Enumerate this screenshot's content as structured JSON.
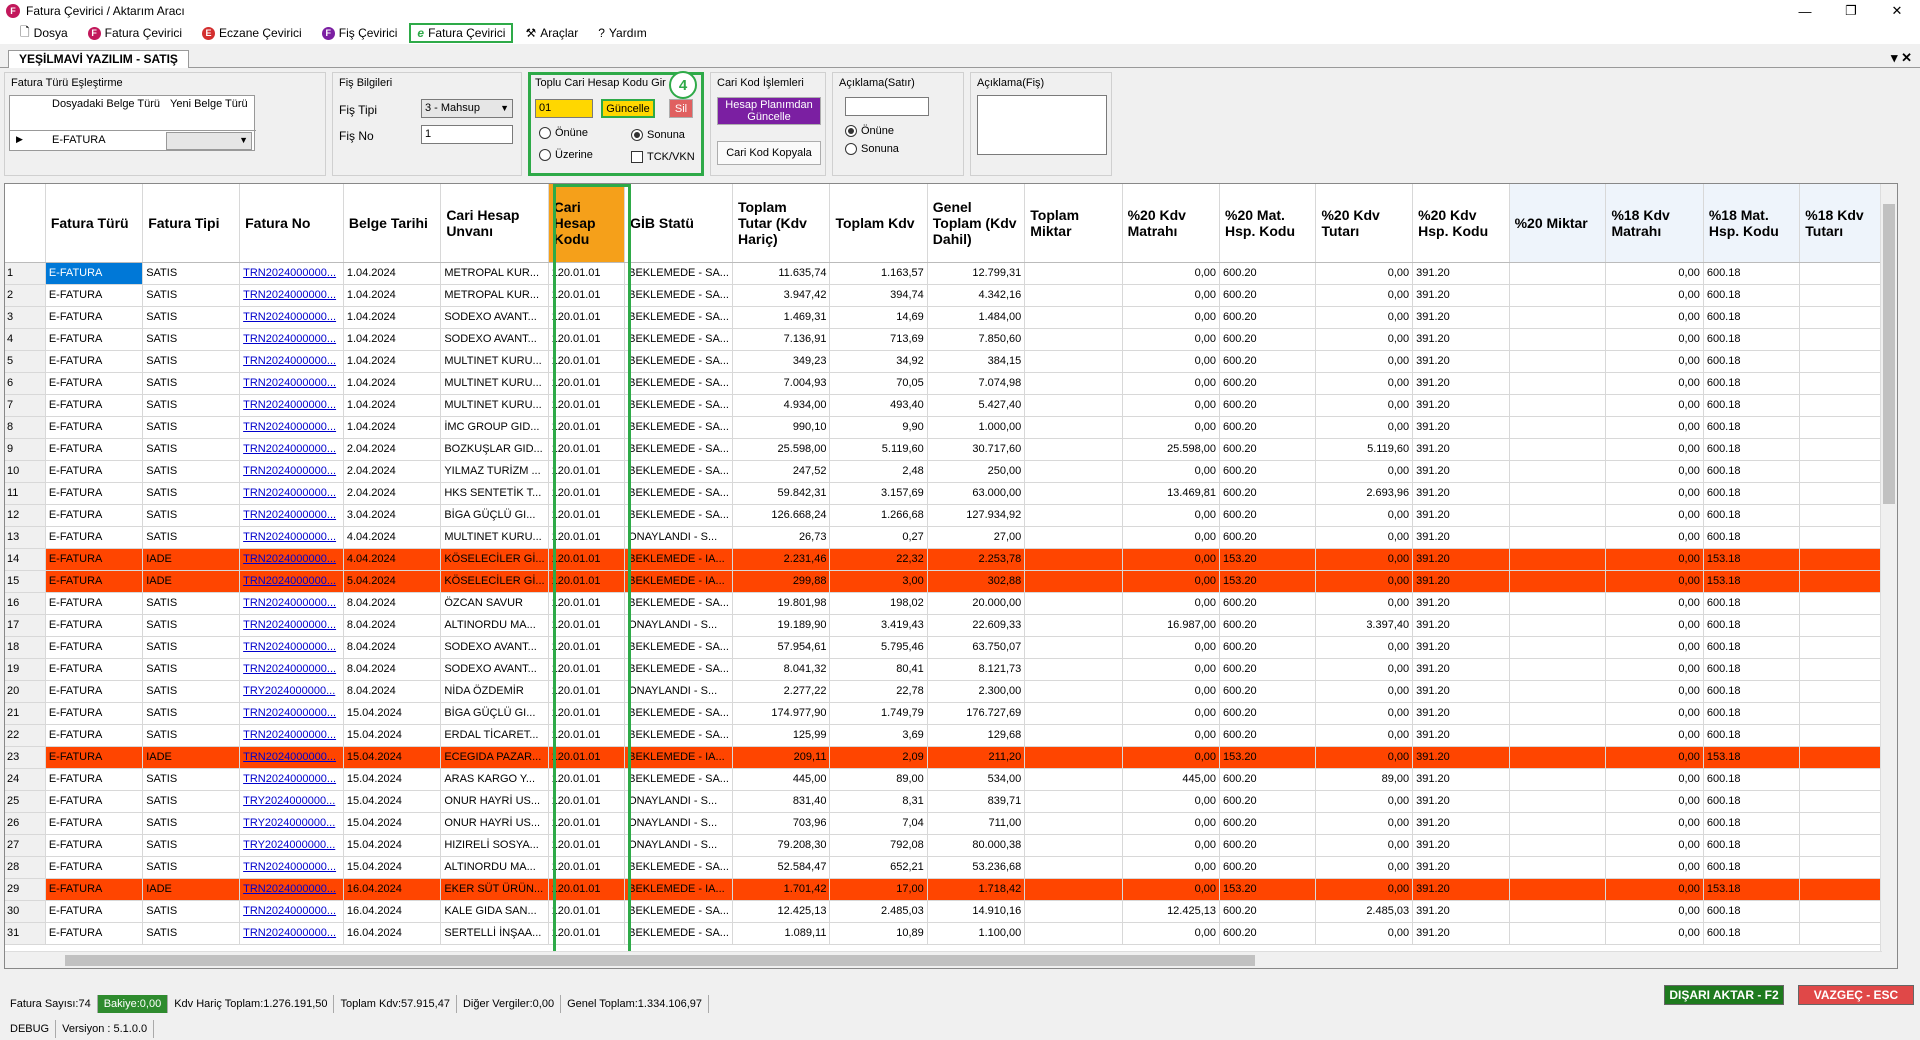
{
  "window": {
    "title": "Fatura Çevirici / Aktarım Aracı",
    "icon_letter": "F"
  },
  "menu": [
    {
      "label": "Dosya",
      "icon": "document-icon"
    },
    {
      "label": "Fatura Çevirici",
      "icon": "f-circle-icon",
      "icon_letter": "F",
      "color": "#c2185b"
    },
    {
      "label": "Eczane Çevirici",
      "icon": "e-circle-icon",
      "icon_letter": "E",
      "color": "#d32f2f"
    },
    {
      "label": "Fiş Çevirici",
      "icon": "f-circle-icon",
      "icon_letter": "F",
      "color": "#7b1fa2"
    },
    {
      "label": "Fatura Çevirici",
      "icon": "e-script-icon",
      "icon_letter": "e",
      "color": "#2eaa48",
      "highlighted": true
    },
    {
      "label": "Araçlar",
      "icon": "tools-icon"
    },
    {
      "label": "Yardım",
      "icon": "help-icon"
    }
  ],
  "tab": {
    "label": "YEŞİLMAVİ YAZILIM - SATIŞ",
    "close": "▾ ✕"
  },
  "fatura_turu": {
    "title": "Fatura Türü Eşleştirme",
    "col1": "Dosyadaki Belge Türü",
    "col2": "Yeni Belge Türü",
    "row_value": "E-FATURA"
  },
  "fis": {
    "title": "Fiş Bilgileri",
    "tipi_label": "Fiş Tipi",
    "tipi_value": "3 - Mahsup",
    "no_label": "Fiş No",
    "no_value": "1"
  },
  "toplu": {
    "title": "Toplu Cari Hesap Kodu Gir",
    "value": "01",
    "update_btn": "Güncelle",
    "delete_btn": "Sil",
    "badge": "4",
    "onune": "Önüne",
    "sonuna": "Sonuna",
    "uzerine": "Üzerine",
    "tck": "TCK/VKN"
  },
  "cari_kod": {
    "title": "Cari Kod İşlemleri",
    "plan_btn": "Hesap Planımdan Güncelle",
    "copy_btn": "Cari Kod Kopyala"
  },
  "aciklama_satir": {
    "title": "Açıklama(Satır)",
    "onune": "Önüne",
    "sonuna": "Sonuna"
  },
  "aciklama_fis": {
    "title": "Açıklama(Fiş)"
  },
  "columns": [
    "Fatura Türü",
    "Fatura Tipi",
    "Fatura No",
    "Belge Tarihi",
    "Cari Hesap Unvanı",
    "Cari Hesap Kodu",
    "GİB Statü",
    "Toplam Tutar (Kdv Hariç)",
    "Toplam Kdv",
    "Genel Toplam (Kdv Dahil)",
    "Toplam Miktar",
    "%20 Kdv Matrahı",
    "%20 Mat. Hsp. Kodu",
    "%20 Kdv Tutarı",
    "%20 Kdv Hsp. Kodu",
    "%20 Miktar",
    "%18 Kdv Matrahı",
    "%18 Mat. Hsp. Kodu",
    "%18 Kdv Tutarı"
  ],
  "rows": [
    [
      "1",
      "E-FATURA",
      "SATIS",
      "TRN2024000000...",
      "1.04.2024",
      "METROPAL KUR...",
      "120.01.01",
      "BEKLEMEDE - SA...",
      "11.635,74",
      "1.163,57",
      "12.799,31",
      "",
      "0,00",
      "600.20",
      "0,00",
      "391.20",
      "",
      "0,00",
      "600.18",
      ""
    ],
    [
      "2",
      "E-FATURA",
      "SATIS",
      "TRN2024000000...",
      "1.04.2024",
      "METROPAL KUR...",
      "120.01.01",
      "BEKLEMEDE - SA...",
      "3.947,42",
      "394,74",
      "4.342,16",
      "",
      "0,00",
      "600.20",
      "0,00",
      "391.20",
      "",
      "0,00",
      "600.18",
      ""
    ],
    [
      "3",
      "E-FATURA",
      "SATIS",
      "TRN2024000000...",
      "1.04.2024",
      "SODEXO AVANT...",
      "120.01.01",
      "BEKLEMEDE - SA...",
      "1.469,31",
      "14,69",
      "1.484,00",
      "",
      "0,00",
      "600.20",
      "0,00",
      "391.20",
      "",
      "0,00",
      "600.18",
      ""
    ],
    [
      "4",
      "E-FATURA",
      "SATIS",
      "TRN2024000000...",
      "1.04.2024",
      "SODEXO AVANT...",
      "120.01.01",
      "BEKLEMEDE - SA...",
      "7.136,91",
      "713,69",
      "7.850,60",
      "",
      "0,00",
      "600.20",
      "0,00",
      "391.20",
      "",
      "0,00",
      "600.18",
      ""
    ],
    [
      "5",
      "E-FATURA",
      "SATIS",
      "TRN2024000000...",
      "1.04.2024",
      "MULTINET KURU...",
      "120.01.01",
      "BEKLEMEDE - SA...",
      "349,23",
      "34,92",
      "384,15",
      "",
      "0,00",
      "600.20",
      "0,00",
      "391.20",
      "",
      "0,00",
      "600.18",
      ""
    ],
    [
      "6",
      "E-FATURA",
      "SATIS",
      "TRN2024000000...",
      "1.04.2024",
      "MULTINET KURU...",
      "120.01.01",
      "BEKLEMEDE - SA...",
      "7.004,93",
      "70,05",
      "7.074,98",
      "",
      "0,00",
      "600.20",
      "0,00",
      "391.20",
      "",
      "0,00",
      "600.18",
      ""
    ],
    [
      "7",
      "E-FATURA",
      "SATIS",
      "TRN2024000000...",
      "1.04.2024",
      "MULTINET KURU...",
      "120.01.01",
      "BEKLEMEDE - SA...",
      "4.934,00",
      "493,40",
      "5.427,40",
      "",
      "0,00",
      "600.20",
      "0,00",
      "391.20",
      "",
      "0,00",
      "600.18",
      ""
    ],
    [
      "8",
      "E-FATURA",
      "SATIS",
      "TRN2024000000...",
      "1.04.2024",
      "İMC GROUP GID...",
      "120.01.01",
      "BEKLEMEDE - SA...",
      "990,10",
      "9,90",
      "1.000,00",
      "",
      "0,00",
      "600.20",
      "0,00",
      "391.20",
      "",
      "0,00",
      "600.18",
      ""
    ],
    [
      "9",
      "E-FATURA",
      "SATIS",
      "TRN2024000000...",
      "2.04.2024",
      "BOZKUŞLAR GID...",
      "120.01.01",
      "BEKLEMEDE - SA...",
      "25.598,00",
      "5.119,60",
      "30.717,60",
      "",
      "25.598,00",
      "600.20",
      "5.119,60",
      "391.20",
      "",
      "0,00",
      "600.18",
      ""
    ],
    [
      "10",
      "E-FATURA",
      "SATIS",
      "TRN2024000000...",
      "2.04.2024",
      "YILMAZ TURİZM ...",
      "120.01.01",
      "BEKLEMEDE - SA...",
      "247,52",
      "2,48",
      "250,00",
      "",
      "0,00",
      "600.20",
      "0,00",
      "391.20",
      "",
      "0,00",
      "600.18",
      ""
    ],
    [
      "11",
      "E-FATURA",
      "SATIS",
      "TRN2024000000...",
      "2.04.2024",
      "HKS SENTETİK T...",
      "120.01.01",
      "BEKLEMEDE - SA...",
      "59.842,31",
      "3.157,69",
      "63.000,00",
      "",
      "13.469,81",
      "600.20",
      "2.693,96",
      "391.20",
      "",
      "0,00",
      "600.18",
      ""
    ],
    [
      "12",
      "E-FATURA",
      "SATIS",
      "TRN2024000000...",
      "3.04.2024",
      "BİGA GÜÇLÜ GI...",
      "120.01.01",
      "BEKLEMEDE - SA...",
      "126.668,24",
      "1.266,68",
      "127.934,92",
      "",
      "0,00",
      "600.20",
      "0,00",
      "391.20",
      "",
      "0,00",
      "600.18",
      ""
    ],
    [
      "13",
      "E-FATURA",
      "SATIS",
      "TRN2024000000...",
      "4.04.2024",
      "MULTINET KURU...",
      "120.01.01",
      "ONAYLANDI - S...",
      "26,73",
      "0,27",
      "27,00",
      "",
      "0,00",
      "600.20",
      "0,00",
      "391.20",
      "",
      "0,00",
      "600.18",
      ""
    ],
    [
      "14",
      "E-FATURA",
      "IADE",
      "TRN2024000000...",
      "4.04.2024",
      "KÖSELECİLER Gİ...",
      "120.01.01",
      "BEKLEMEDE - IA...",
      "2.231,46",
      "22,32",
      "2.253,78",
      "",
      "0,00",
      "153.20",
      "0,00",
      "391.20",
      "",
      "0,00",
      "153.18",
      ""
    ],
    [
      "15",
      "E-FATURA",
      "IADE",
      "TRN2024000000...",
      "5.04.2024",
      "KÖSELECİLER Gİ...",
      "120.01.01",
      "BEKLEMEDE - IA...",
      "299,88",
      "3,00",
      "302,88",
      "",
      "0,00",
      "153.20",
      "0,00",
      "391.20",
      "",
      "0,00",
      "153.18",
      ""
    ],
    [
      "16",
      "E-FATURA",
      "SATIS",
      "TRN2024000000...",
      "8.04.2024",
      "ÖZCAN SAVUR",
      "120.01.01",
      "BEKLEMEDE - SA...",
      "19.801,98",
      "198,02",
      "20.000,00",
      "",
      "0,00",
      "600.20",
      "0,00",
      "391.20",
      "",
      "0,00",
      "600.18",
      ""
    ],
    [
      "17",
      "E-FATURA",
      "SATIS",
      "TRN2024000000...",
      "8.04.2024",
      "ALTINORDU MA...",
      "120.01.01",
      "ONAYLANDI - S...",
      "19.189,90",
      "3.419,43",
      "22.609,33",
      "",
      "16.987,00",
      "600.20",
      "3.397,40",
      "391.20",
      "",
      "0,00",
      "600.18",
      ""
    ],
    [
      "18",
      "E-FATURA",
      "SATIS",
      "TRN2024000000...",
      "8.04.2024",
      "SODEXO AVANT...",
      "120.01.01",
      "BEKLEMEDE - SA...",
      "57.954,61",
      "5.795,46",
      "63.750,07",
      "",
      "0,00",
      "600.20",
      "0,00",
      "391.20",
      "",
      "0,00",
      "600.18",
      ""
    ],
    [
      "19",
      "E-FATURA",
      "SATIS",
      "TRN2024000000...",
      "8.04.2024",
      "SODEXO AVANT...",
      "120.01.01",
      "BEKLEMEDE - SA...",
      "8.041,32",
      "80,41",
      "8.121,73",
      "",
      "0,00",
      "600.20",
      "0,00",
      "391.20",
      "",
      "0,00",
      "600.18",
      ""
    ],
    [
      "20",
      "E-FATURA",
      "SATIS",
      "TRY2024000000...",
      "8.04.2024",
      "NİDA ÖZDEMİR",
      "120.01.01",
      "ONAYLANDI - S...",
      "2.277,22",
      "22,78",
      "2.300,00",
      "",
      "0,00",
      "600.20",
      "0,00",
      "391.20",
      "",
      "0,00",
      "600.18",
      ""
    ],
    [
      "21",
      "E-FATURA",
      "SATIS",
      "TRN2024000000...",
      "15.04.2024",
      "BİGA GÜÇLÜ GI...",
      "120.01.01",
      "BEKLEMEDE - SA...",
      "174.977,90",
      "1.749,79",
      "176.727,69",
      "",
      "0,00",
      "600.20",
      "0,00",
      "391.20",
      "",
      "0,00",
      "600.18",
      ""
    ],
    [
      "22",
      "E-FATURA",
      "SATIS",
      "TRN2024000000...",
      "15.04.2024",
      "ERDAL TİCARET...",
      "120.01.01",
      "BEKLEMEDE - SA...",
      "125,99",
      "3,69",
      "129,68",
      "",
      "0,00",
      "600.20",
      "0,00",
      "391.20",
      "",
      "0,00",
      "600.18",
      ""
    ],
    [
      "23",
      "E-FATURA",
      "IADE",
      "TRN2024000000...",
      "15.04.2024",
      "ECEGIDA PAZAR...",
      "120.01.01",
      "BEKLEMEDE - IA...",
      "209,11",
      "2,09",
      "211,20",
      "",
      "0,00",
      "153.20",
      "0,00",
      "391.20",
      "",
      "0,00",
      "153.18",
      ""
    ],
    [
      "24",
      "E-FATURA",
      "SATIS",
      "TRN2024000000...",
      "15.04.2024",
      "ARAS KARGO Y...",
      "120.01.01",
      "BEKLEMEDE - SA...",
      "445,00",
      "89,00",
      "534,00",
      "",
      "445,00",
      "600.20",
      "89,00",
      "391.20",
      "",
      "0,00",
      "600.18",
      ""
    ],
    [
      "25",
      "E-FATURA",
      "SATIS",
      "TRY2024000000...",
      "15.04.2024",
      "ONUR HAYRİ US...",
      "120.01.01",
      "ONAYLANDI - S...",
      "831,40",
      "8,31",
      "839,71",
      "",
      "0,00",
      "600.20",
      "0,00",
      "391.20",
      "",
      "0,00",
      "600.18",
      ""
    ],
    [
      "26",
      "E-FATURA",
      "SATIS",
      "TRY2024000000...",
      "15.04.2024",
      "ONUR HAYRİ US...",
      "120.01.01",
      "ONAYLANDI - S...",
      "703,96",
      "7,04",
      "711,00",
      "",
      "0,00",
      "600.20",
      "0,00",
      "391.20",
      "",
      "0,00",
      "600.18",
      ""
    ],
    [
      "27",
      "E-FATURA",
      "SATIS",
      "TRY2024000000...",
      "15.04.2024",
      "HIZIRELİ SOSYA...",
      "120.01.01",
      "ONAYLANDI - S...",
      "79.208,30",
      "792,08",
      "80.000,38",
      "",
      "0,00",
      "600.20",
      "0,00",
      "391.20",
      "",
      "0,00",
      "600.18",
      ""
    ],
    [
      "28",
      "E-FATURA",
      "SATIS",
      "TRN2024000000...",
      "15.04.2024",
      "ALTINORDU MA...",
      "120.01.01",
      "BEKLEMEDE - SA...",
      "52.584,47",
      "652,21",
      "53.236,68",
      "",
      "0,00",
      "600.20",
      "0,00",
      "391.20",
      "",
      "0,00",
      "600.18",
      ""
    ],
    [
      "29",
      "E-FATURA",
      "IADE",
      "TRN2024000000...",
      "16.04.2024",
      "EKER SÜT ÜRÜN...",
      "120.01.01",
      "BEKLEMEDE - IA...",
      "1.701,42",
      "17,00",
      "1.718,42",
      "",
      "0,00",
      "153.20",
      "0,00",
      "391.20",
      "",
      "0,00",
      "153.18",
      ""
    ],
    [
      "30",
      "E-FATURA",
      "SATIS",
      "TRN2024000000...",
      "16.04.2024",
      "KALE GIDA SAN...",
      "120.01.01",
      "BEKLEMEDE - SA...",
      "12.425,13",
      "2.485,03",
      "14.910,16",
      "",
      "12.425,13",
      "600.20",
      "2.485,03",
      "391.20",
      "",
      "0,00",
      "600.18",
      ""
    ],
    [
      "31",
      "E-FATURA",
      "SATIS",
      "TRN2024000000...",
      "16.04.2024",
      "SERTELLİ İNŞAA...",
      "120.01.01",
      "BEKLEMEDE - SA...",
      "1.089,11",
      "10,89",
      "1.100,00",
      "",
      "0,00",
      "600.20",
      "0,00",
      "391.20",
      "",
      "0,00",
      "600.18",
      ""
    ]
  ],
  "status": {
    "count": "Fatura Sayısı:74",
    "bakiye": "Bakiye:0,00",
    "kdv_haric": "Kdv Hariç Toplam:1.276.191,50",
    "toplam_kdv": "Toplam Kdv:57.915,47",
    "diger": "Diğer Vergiler:0,00",
    "genel": "Genel Toplam:1.334.106,97"
  },
  "buttons": {
    "export": "DIŞARI AKTAR - F2",
    "cancel": "VAZGEÇ - ESC",
    "export_color": "#1e7a1e",
    "cancel_color": "#e04848"
  },
  "debug": {
    "mode": "DEBUG",
    "version": "Versiyon : 5.1.0.0"
  }
}
